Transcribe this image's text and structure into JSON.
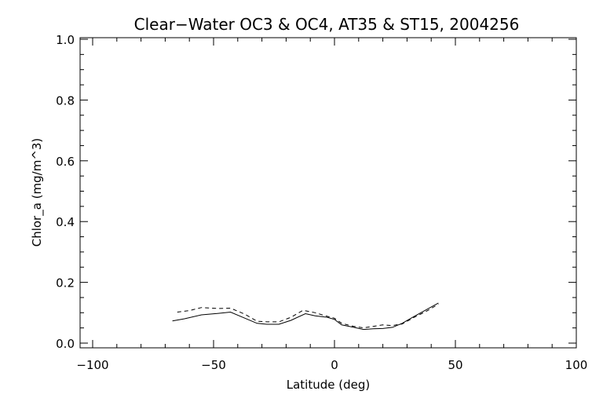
{
  "chart_data": {
    "type": "line",
    "title": "Clear−Water OC3 & OC4, AT35 & ST15, 2004256",
    "xlabel": "Latitude (deg)",
    "ylabel": "Chlor_a (mg/m^3)",
    "xlim": [
      -100,
      100
    ],
    "ylim": [
      0.0,
      1.0
    ],
    "xticks": [
      -100,
      -50,
      0,
      50,
      100
    ],
    "xtick_labels": [
      "−100",
      "−50",
      "0",
      "50",
      "100"
    ],
    "yticks": [
      0.0,
      0.2,
      0.4,
      0.6,
      0.8,
      1.0
    ],
    "ytick_labels": [
      "0.0",
      "0.2",
      "0.4",
      "0.6",
      "0.8",
      "1.0"
    ],
    "grid": false,
    "series": [
      {
        "style": "solid",
        "color": "#000000",
        "x": [
          -67,
          -62,
          -55,
          -48,
          -43,
          -37,
          -32,
          -28,
          -23,
          -18,
          -12,
          -8,
          -3,
          0,
          3,
          8,
          12,
          16,
          20,
          24,
          28,
          33,
          38,
          43
        ],
        "y": [
          0.073,
          0.08,
          0.093,
          0.098,
          0.102,
          0.082,
          0.065,
          0.062,
          0.062,
          0.075,
          0.097,
          0.09,
          0.085,
          0.078,
          0.06,
          0.052,
          0.045,
          0.047,
          0.048,
          0.052,
          0.065,
          0.088,
          0.11,
          0.132
        ]
      },
      {
        "style": "dashed",
        "color": "#000000",
        "x": [
          -65,
          -60,
          -55,
          -48,
          -43,
          -37,
          -32,
          -28,
          -23,
          -18,
          -13,
          -8,
          -3,
          0,
          3,
          8,
          12,
          16,
          20,
          24,
          28,
          33,
          38,
          43
        ],
        "y": [
          0.102,
          0.107,
          0.117,
          0.114,
          0.115,
          0.095,
          0.072,
          0.07,
          0.07,
          0.085,
          0.108,
          0.1,
          0.088,
          0.082,
          0.065,
          0.055,
          0.05,
          0.055,
          0.06,
          0.058,
          0.063,
          0.085,
          0.105,
          0.128
        ]
      }
    ]
  }
}
